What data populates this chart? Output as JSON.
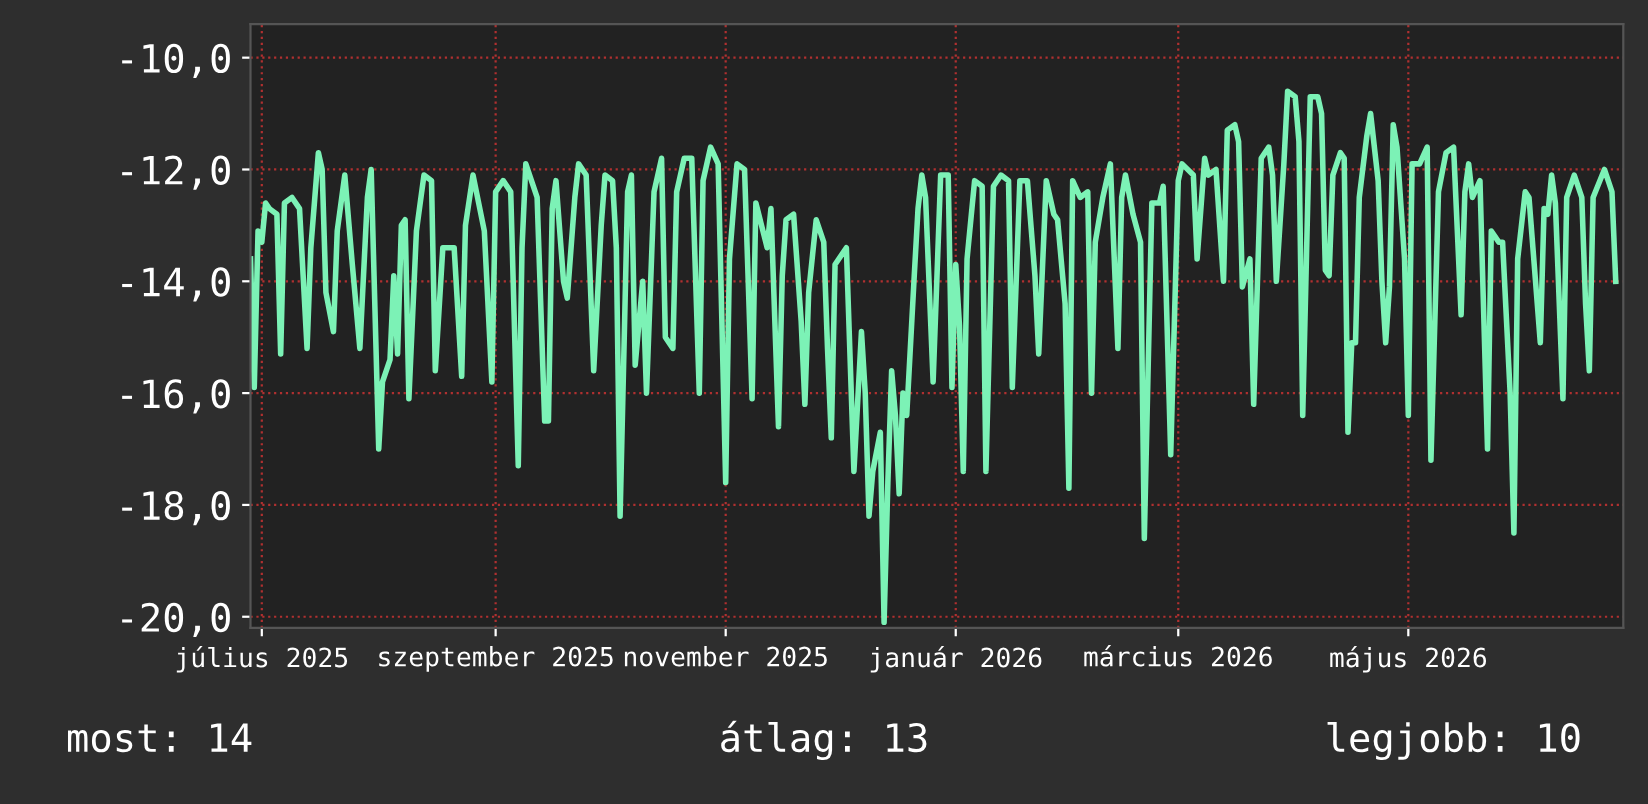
{
  "chart_data": {
    "type": "line",
    "xlim": [
      "2025-06-28",
      "2026-06-27"
    ],
    "xticks": [
      {
        "value": "2025-07-01",
        "label": "július 2025"
      },
      {
        "value": "2025-09-01",
        "label": "szeptember 2025"
      },
      {
        "value": "2025-11-01",
        "label": "november 2025"
      },
      {
        "value": "2026-01-01",
        "label": "január 2026"
      },
      {
        "value": "2026-03-01",
        "label": "március 2026"
      },
      {
        "value": "2026-05-01",
        "label": "május 2026"
      }
    ],
    "ylim": [
      -20.2,
      -9.4
    ],
    "yticks": [
      {
        "value": -20,
        "label": "-20,0"
      },
      {
        "value": -18,
        "label": "-18,0"
      },
      {
        "value": -16,
        "label": "-16,0"
      },
      {
        "value": -14,
        "label": "-14,0"
      },
      {
        "value": -12,
        "label": "-12,0"
      },
      {
        "value": -10,
        "label": "-10,0"
      }
    ],
    "grid": true,
    "marker": "none",
    "line_style": "solid",
    "annotations": [
      "most: 14",
      "átlag: 13",
      "legjobb: 10"
    ],
    "series": [
      {
        "color": "#7cf2b6",
        "x": [
          "2025-06-28",
          "2025-06-29",
          "2025-06-30",
          "2025-07-01",
          "2025-07-02",
          "2025-07-03",
          "2025-07-05",
          "2025-07-06",
          "2025-07-07",
          "2025-07-09",
          "2025-07-11",
          "2025-07-13",
          "2025-07-14",
          "2025-07-16",
          "2025-07-17",
          "2025-07-18",
          "2025-07-20",
          "2025-07-21",
          "2025-07-23",
          "2025-07-25",
          "2025-07-27",
          "2025-07-29",
          "2025-07-30",
          "2025-08-01",
          "2025-08-02",
          "2025-08-04",
          "2025-08-05",
          "2025-08-06",
          "2025-08-07",
          "2025-08-08",
          "2025-08-09",
          "2025-08-11",
          "2025-08-13",
          "2025-08-15",
          "2025-08-16",
          "2025-08-18",
          "2025-08-21",
          "2025-08-23",
          "2025-08-24",
          "2025-08-26",
          "2025-08-29",
          "2025-08-31",
          "2025-09-01",
          "2025-09-03",
          "2025-09-05",
          "2025-09-07",
          "2025-09-08",
          "2025-09-09",
          "2025-09-12",
          "2025-09-14",
          "2025-09-15",
          "2025-09-16",
          "2025-09-17",
          "2025-09-19",
          "2025-09-20",
          "2025-09-22",
          "2025-09-23",
          "2025-09-25",
          "2025-09-27",
          "2025-09-29",
          "2025-09-30",
          "2025-10-02",
          "2025-10-03",
          "2025-10-04",
          "2025-10-06",
          "2025-10-07",
          "2025-10-08",
          "2025-10-10",
          "2025-10-11",
          "2025-10-13",
          "2025-10-15",
          "2025-10-16",
          "2025-10-18",
          "2025-10-19",
          "2025-10-21",
          "2025-10-23",
          "2025-10-25",
          "2025-10-26",
          "2025-10-28",
          "2025-10-30",
          "2025-11-01",
          "2025-11-02",
          "2025-11-04",
          "2025-11-06",
          "2025-11-08",
          "2025-11-09",
          "2025-11-12",
          "2025-11-13",
          "2025-11-15",
          "2025-11-16",
          "2025-11-17",
          "2025-11-19",
          "2025-11-21",
          "2025-11-22",
          "2025-11-23",
          "2025-11-25",
          "2025-11-27",
          "2025-11-28",
          "2025-11-29",
          "2025-11-30",
          "2025-12-03",
          "2025-12-05",
          "2025-12-07",
          "2025-12-08",
          "2025-12-09",
          "2025-12-10",
          "2025-12-12",
          "2025-12-13",
          "2025-12-14",
          "2025-12-15",
          "2025-12-16",
          "2025-12-17",
          "2025-12-18",
          "2025-12-19",
          "2025-12-21",
          "2025-12-22",
          "2025-12-23",
          "2025-12-24",
          "2025-12-26",
          "2025-12-28",
          "2025-12-30",
          "2025-12-31",
          "2026-01-01",
          "2026-01-02",
          "2026-01-03",
          "2026-01-04",
          "2026-01-06",
          "2026-01-08",
          "2026-01-09",
          "2026-01-11",
          "2026-01-13",
          "2026-01-15",
          "2026-01-16",
          "2026-01-18",
          "2026-01-20",
          "2026-01-22",
          "2026-01-23",
          "2026-01-25",
          "2026-01-27",
          "2026-01-28",
          "2026-01-30",
          "2026-01-31",
          "2026-02-01",
          "2026-02-03",
          "2026-02-05",
          "2026-02-06",
          "2026-02-07",
          "2026-02-09",
          "2026-02-11",
          "2026-02-13",
          "2026-02-14",
          "2026-02-15",
          "2026-02-17",
          "2026-02-19",
          "2026-02-20",
          "2026-02-22",
          "2026-02-24",
          "2026-02-25",
          "2026-02-27",
          "2026-03-01",
          "2026-03-02",
          "2026-03-05",
          "2026-03-06",
          "2026-03-08",
          "2026-03-09",
          "2026-03-11",
          "2026-03-13",
          "2026-03-14",
          "2026-03-16",
          "2026-03-17",
          "2026-03-18",
          "2026-03-20",
          "2026-03-21",
          "2026-03-23",
          "2026-03-25",
          "2026-03-26",
          "2026-03-27",
          "2026-03-29",
          "2026-03-30",
          "2026-04-01",
          "2026-04-02",
          "2026-04-03",
          "2026-04-05",
          "2026-04-07",
          "2026-04-08",
          "2026-04-09",
          "2026-04-10",
          "2026-04-11",
          "2026-04-13",
          "2026-04-14",
          "2026-04-15",
          "2026-04-16",
          "2026-04-17",
          "2026-04-18",
          "2026-04-20",
          "2026-04-21",
          "2026-04-23",
          "2026-04-24",
          "2026-04-25",
          "2026-04-26",
          "2026-04-27",
          "2026-04-28",
          "2026-04-30",
          "2026-05-01",
          "2026-05-02",
          "2026-05-04",
          "2026-05-06",
          "2026-05-07",
          "2026-05-09",
          "2026-05-11",
          "2026-05-13",
          "2026-05-15",
          "2026-05-16",
          "2026-05-17",
          "2026-05-18",
          "2026-05-20",
          "2026-05-22",
          "2026-05-23",
          "2026-05-25",
          "2026-05-26",
          "2026-05-28",
          "2026-05-29",
          "2026-05-30",
          "2026-06-01",
          "2026-06-02",
          "2026-06-05",
          "2026-06-06",
          "2026-06-07",
          "2026-06-08",
          "2026-06-09",
          "2026-06-11",
          "2026-06-12",
          "2026-06-14",
          "2026-06-16",
          "2026-06-17",
          "2026-06-18",
          "2026-06-19",
          "2026-06-22",
          "2026-06-24",
          "2026-06-25"
        ],
        "values": [
          -13.6,
          -15.9,
          -13.1,
          -13.3,
          -12.6,
          -12.7,
          -12.8,
          -15.3,
          -12.6,
          -12.5,
          -12.7,
          -15.2,
          -13.4,
          -11.7,
          -12.0,
          -14.2,
          -14.9,
          -13.1,
          -12.1,
          -13.7,
          -15.2,
          -12.5,
          -12.0,
          -17.0,
          -15.8,
          -15.4,
          -13.9,
          -15.3,
          -13.0,
          -12.9,
          -16.1,
          -13.1,
          -12.1,
          -12.2,
          -15.6,
          -13.4,
          -13.4,
          -15.7,
          -13.0,
          -12.1,
          -13.1,
          -15.8,
          -12.4,
          -12.2,
          -12.4,
          -17.3,
          -13.4,
          -11.9,
          -12.5,
          -16.5,
          -16.5,
          -12.7,
          -12.2,
          -14.0,
          -14.3,
          -12.5,
          -11.9,
          -12.1,
          -15.6,
          -13.0,
          -12.1,
          -12.2,
          -13.4,
          -18.2,
          -12.4,
          -12.1,
          -15.5,
          -14.0,
          -16.0,
          -12.4,
          -11.8,
          -15.0,
          -15.2,
          -12.4,
          -11.8,
          -11.8,
          -16.0,
          -12.2,
          -11.6,
          -11.9,
          -17.6,
          -13.6,
          -11.9,
          -12.0,
          -16.1,
          -12.6,
          -13.4,
          -12.7,
          -16.6,
          -13.9,
          -12.9,
          -12.8,
          -14.7,
          -16.2,
          -14.2,
          -12.9,
          -13.3,
          -15.2,
          -16.8,
          -13.7,
          -13.4,
          -17.4,
          -14.9,
          -16.0,
          -18.2,
          -17.4,
          -16.7,
          -20.1,
          -17.6,
          -15.6,
          -16.4,
          -17.8,
          -16.0,
          -16.4,
          -13.9,
          -12.7,
          -12.1,
          -12.5,
          -15.8,
          -12.1,
          -12.1,
          -15.9,
          -13.7,
          -14.8,
          -17.4,
          -13.6,
          -12.2,
          -12.3,
          -17.4,
          -12.3,
          -12.1,
          -12.2,
          -15.9,
          -12.2,
          -12.2,
          -13.9,
          -15.3,
          -12.2,
          -12.8,
          -12.9,
          -14.4,
          -17.7,
          -12.2,
          -12.5,
          -12.4,
          -16.0,
          -13.3,
          -12.5,
          -11.9,
          -15.2,
          -12.5,
          -12.1,
          -12.8,
          -13.3,
          -18.6,
          -12.6,
          -12.6,
          -12.3,
          -17.1,
          -12.2,
          -11.9,
          -12.1,
          -13.6,
          -11.8,
          -12.1,
          -12.0,
          -14.0,
          -11.3,
          -11.2,
          -11.5,
          -14.1,
          -13.6,
          -16.2,
          -11.8,
          -11.6,
          -12.1,
          -14.0,
          -11.9,
          -10.6,
          -10.7,
          -11.5,
          -16.4,
          -10.7,
          -10.7,
          -11.0,
          -13.8,
          -13.9,
          -12.1,
          -11.7,
          -11.8,
          -16.7,
          -15.1,
          -15.1,
          -12.5,
          -11.4,
          -11.0,
          -12.2,
          -14.0,
          -15.1,
          -14.1,
          -11.2,
          -11.6,
          -13.6,
          -16.4,
          -11.9,
          -11.9,
          -11.6,
          -17.2,
          -12.4,
          -11.7,
          -11.6,
          -14.6,
          -12.4,
          -11.9,
          -12.5,
          -12.2,
          -17.0,
          -13.1,
          -13.3,
          -13.3,
          -16.0,
          -18.5,
          -13.6,
          -12.4,
          -12.5,
          -15.1,
          -12.7,
          -12.8,
          -12.1,
          -12.6,
          -16.1,
          -12.5,
          -12.1,
          -12.5,
          -14.4,
          -15.6,
          -12.5,
          -12.0,
          -12.4,
          -14.0
        ]
      }
    ]
  }
}
